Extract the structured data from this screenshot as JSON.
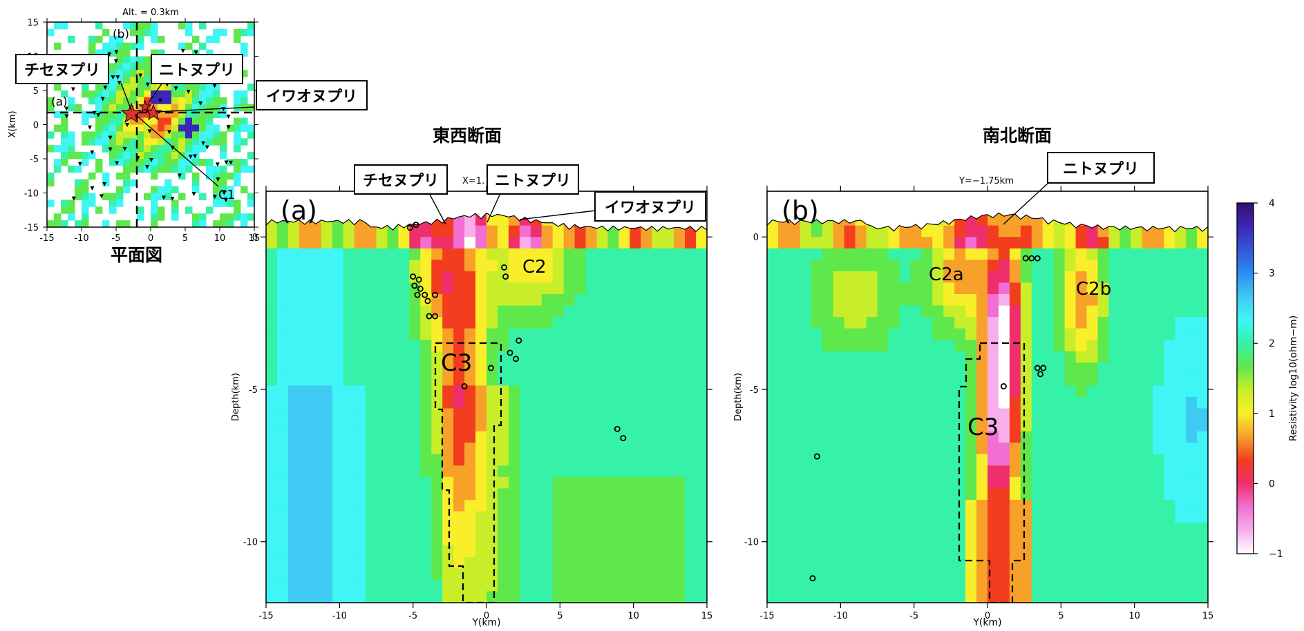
{
  "colors": {
    "scale": [
      "#ffffff",
      "#f7aeea",
      "#f26ed2",
      "#ef2f6c",
      "#f23d1e",
      "#f7a12a",
      "#f9ee2a",
      "#c8ee2a",
      "#5fe84b",
      "#35f2a8",
      "#3ff5f5",
      "#3fcaf3",
      "#2b8ef2",
      "#3556d8",
      "#3a27b8",
      "#37106b"
    ],
    "frame": "#000000",
    "dashed": "#000000"
  },
  "plan": {
    "alt_label": "Alt. = 0.3km",
    "ylabel": "X(km)",
    "title": "平面図",
    "xticks": [
      "-15",
      "-10",
      "-5",
      "0",
      "5",
      "10",
      "15"
    ],
    "yticks": [
      "15",
      "10",
      "5",
      "0",
      "-5",
      "-10",
      "-15"
    ],
    "line_a": "(a)",
    "line_b": "(b)",
    "c1_label": "C1"
  },
  "ew": {
    "title": "東西断面",
    "panel": "(a)",
    "section_label": "X=1.",
    "ylabel": "Depth(km)",
    "xlabel": "Y(km)",
    "xticks": [
      "-15",
      "-10",
      "-5",
      "0",
      "5",
      "10",
      "15"
    ],
    "yticks": [
      "0",
      "-5",
      "-10"
    ],
    "labels": [
      "C2",
      "C3"
    ]
  },
  "ns": {
    "title": "南北断面",
    "panel": "(b)",
    "section_label": "Y=−1.75km",
    "ylabel": "Depth(km)",
    "xlabel": "Y(km)",
    "xticks": [
      "-15",
      "-10",
      "-5",
      "0",
      "5",
      "10",
      "15"
    ],
    "yticks": [
      "0",
      "-5",
      "-10"
    ],
    "labels": [
      "C2a",
      "C2b",
      "C3"
    ]
  },
  "colorbar": {
    "label": "Resistivity log10(ohm−m)",
    "ticks": [
      "4",
      "3",
      "2",
      "1",
      "0",
      "−1"
    ]
  },
  "callouts": {
    "chise": "チセヌプリ",
    "nito": "ニトヌプリ",
    "iwao": "イワオヌプリ"
  },
  "chart_data": [
    {
      "type": "heatmap",
      "name_in_figure": "平面図",
      "xlim": [
        -15,
        15
      ],
      "ylim": [
        -15,
        15
      ],
      "ylabel": "X(km)",
      "annotation": "Alt. = 0.3km",
      "feature": "C1",
      "colorbar_range": [
        -1,
        4
      ]
    },
    {
      "type": "heatmap",
      "name_in_figure": "東西断面",
      "xlim": [
        -15,
        15
      ],
      "ylim": [
        -12,
        1.5
      ],
      "xlabel": "Y(km)",
      "ylabel": "Depth(km)",
      "features": [
        "C2",
        "C3"
      ],
      "colorbar_range": [
        -1,
        4
      ],
      "hypocenters": [
        {
          "y": -5.2,
          "depth": 0.3
        },
        {
          "y": -4.8,
          "depth": 0.4
        },
        {
          "y": -5.0,
          "depth": -1.3
        },
        {
          "y": -4.6,
          "depth": -1.4
        },
        {
          "y": -4.9,
          "depth": -1.6
        },
        {
          "y": -4.5,
          "depth": -1.7
        },
        {
          "y": -4.2,
          "depth": -1.9
        },
        {
          "y": -4.0,
          "depth": -2.1
        },
        {
          "y": -4.7,
          "depth": -1.9
        },
        {
          "y": -3.5,
          "depth": -1.9
        },
        {
          "y": -3.9,
          "depth": -2.6
        },
        {
          "y": -3.5,
          "depth": -2.6
        },
        {
          "y": 1.2,
          "depth": -1.0
        },
        {
          "y": 1.3,
          "depth": -1.3
        },
        {
          "y": 1.6,
          "depth": -3.8
        },
        {
          "y": 2.2,
          "depth": -3.4
        },
        {
          "y": 2.0,
          "depth": -4.0
        },
        {
          "y": -1.5,
          "depth": -4.9
        },
        {
          "y": 0.3,
          "depth": -4.3
        },
        {
          "y": 8.9,
          "depth": -6.3
        },
        {
          "y": 9.3,
          "depth": -6.6
        }
      ]
    },
    {
      "type": "heatmap",
      "name_in_figure": "南北断面",
      "xlim": [
        -15,
        15
      ],
      "ylim": [
        -12,
        1.5
      ],
      "xlabel": "Y(km)",
      "ylabel": "Depth(km)",
      "features": [
        "C2a",
        "C2b",
        "C3"
      ],
      "colorbar_range": [
        -1,
        4
      ],
      "hypocenters": [
        {
          "y": 2.6,
          "depth": -0.7
        },
        {
          "y": 3.0,
          "depth": -0.7
        },
        {
          "y": 3.4,
          "depth": -0.7
        },
        {
          "y": 1.1,
          "depth": -4.9
        },
        {
          "y": 3.4,
          "depth": -4.3
        },
        {
          "y": 3.8,
          "depth": -4.3
        },
        {
          "y": 3.6,
          "depth": -4.5
        },
        {
          "y": -11.6,
          "depth": -7.2
        },
        {
          "y": -11.9,
          "depth": -11.2
        }
      ]
    }
  ]
}
